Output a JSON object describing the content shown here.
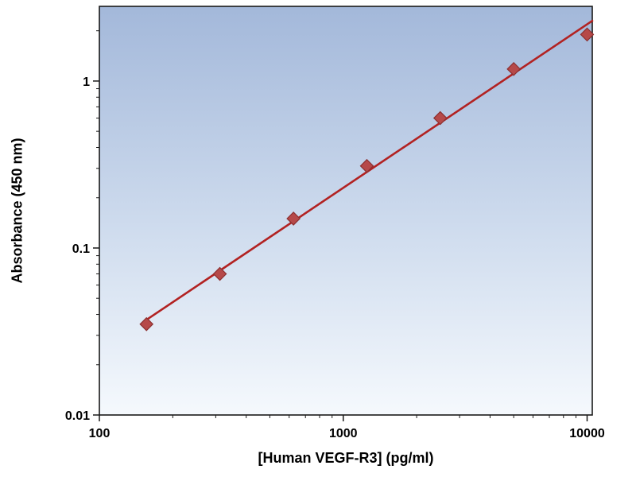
{
  "chart_data": {
    "type": "scatter",
    "title": "",
    "xlabel": "[Human VEGF-R3] (pg/ml)",
    "ylabel": "Absorbance (450 nm)",
    "xscale": "log",
    "yscale": "log",
    "xlim": [
      100,
      10500
    ],
    "ylim": [
      0.01,
      2.8
    ],
    "x_ticks": [
      100,
      1000,
      10000
    ],
    "x_tick_labels": [
      "100",
      "1000",
      "10000"
    ],
    "y_ticks": [
      0.01,
      0.1,
      1
    ],
    "y_tick_labels": [
      "0.01",
      "0.1",
      "1"
    ],
    "x": [
      156,
      312,
      625,
      1250,
      2500,
      5000,
      10000
    ],
    "y": [
      0.035,
      0.07,
      0.15,
      0.31,
      0.6,
      1.18,
      1.9
    ],
    "trendline": true,
    "marker": "diamond",
    "grid": false,
    "legend": null,
    "colors": {
      "marker_fill": "#b64949",
      "marker_edge": "#8c2f2f",
      "trendline": "#b22222",
      "axis_frame": "#1a1a1a",
      "plot_bg_top": "#a3b8da",
      "plot_bg_mid": "#cfdcee",
      "plot_bg_bottom": "#f5f9fd"
    }
  }
}
